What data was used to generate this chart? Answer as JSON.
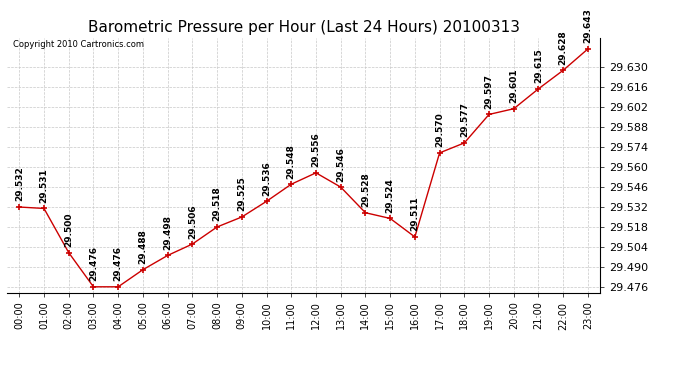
{
  "title": "Barometric Pressure per Hour (Last 24 Hours) 20100313",
  "copyright": "Copyright 2010 Cartronics.com",
  "hours": [
    "00:00",
    "01:00",
    "02:00",
    "03:00",
    "04:00",
    "05:00",
    "06:00",
    "07:00",
    "08:00",
    "09:00",
    "10:00",
    "11:00",
    "12:00",
    "13:00",
    "14:00",
    "15:00",
    "16:00",
    "17:00",
    "18:00",
    "19:00",
    "20:00",
    "21:00",
    "22:00",
    "23:00"
  ],
  "values": [
    29.532,
    29.531,
    29.5,
    29.476,
    29.476,
    29.488,
    29.498,
    29.506,
    29.518,
    29.525,
    29.536,
    29.548,
    29.556,
    29.546,
    29.528,
    29.524,
    29.511,
    29.57,
    29.577,
    29.597,
    29.601,
    29.615,
    29.628,
    29.643
  ],
  "line_color": "#cc0000",
  "marker_color": "#cc0000",
  "bg_color": "#ffffff",
  "grid_color": "#c8c8c8",
  "title_fontsize": 11,
  "label_fontsize": 6.5,
  "ytick_fontsize": 8,
  "xtick_fontsize": 7,
  "copyright_fontsize": 6,
  "ylim_min": 29.476,
  "ylim_max": 29.643,
  "ytick_step": 0.014,
  "marker_size": 5,
  "line_width": 1.0
}
